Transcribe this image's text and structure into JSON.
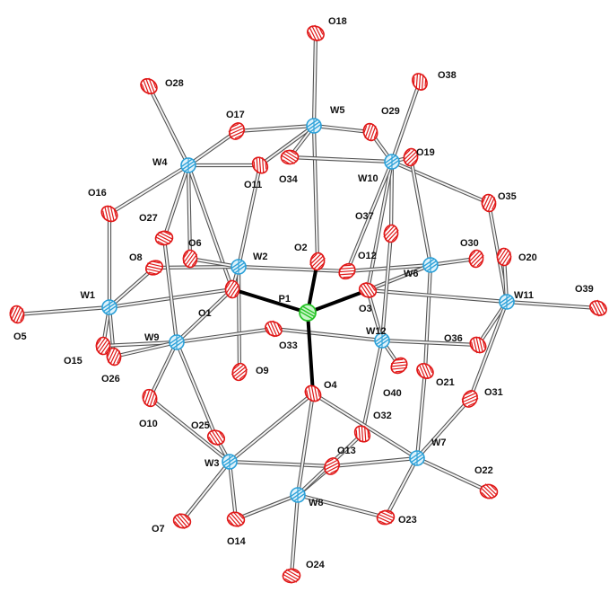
{
  "colors": {
    "bond": "#555555",
    "bond_fill": "#f4f4f4",
    "p_bond": "#000000",
    "oxygen": "#e01818",
    "oxygen_fill": "#ffffff",
    "tungsten": "#2aa0d8",
    "tungsten_fill": "#dff2fb",
    "phosphorus": "#27c527",
    "label": "#111111"
  },
  "atoms": [
    {
      "id": "P1",
      "label": "P1",
      "el": "P"
    },
    {
      "id": "W1",
      "label": "W1",
      "el": "W"
    },
    {
      "id": "W2",
      "label": "W2",
      "el": "W"
    },
    {
      "id": "W3",
      "label": "W3",
      "el": "W"
    },
    {
      "id": "W4",
      "label": "W4",
      "el": "W"
    },
    {
      "id": "W5",
      "label": "W5",
      "el": "W"
    },
    {
      "id": "W6",
      "label": "W6",
      "el": "W"
    },
    {
      "id": "W7",
      "label": "W7",
      "el": "W"
    },
    {
      "id": "W8",
      "label": "W8",
      "el": "W"
    },
    {
      "id": "W9",
      "label": "W9",
      "el": "W"
    },
    {
      "id": "W10",
      "label": "W10",
      "el": "W"
    },
    {
      "id": "W11",
      "label": "W11",
      "el": "W"
    },
    {
      "id": "W12",
      "label": "W12",
      "el": "W"
    },
    {
      "id": "O1",
      "label": "O1",
      "el": "O"
    },
    {
      "id": "O2",
      "label": "O2",
      "el": "O"
    },
    {
      "id": "O3",
      "label": "O3",
      "el": "O"
    },
    {
      "id": "O4",
      "label": "O4",
      "el": "O"
    },
    {
      "id": "O5",
      "label": "O5",
      "el": "O"
    },
    {
      "id": "O6",
      "label": "O6",
      "el": "O"
    },
    {
      "id": "O7",
      "label": "O7",
      "el": "O"
    },
    {
      "id": "O8",
      "label": "O8",
      "el": "O"
    },
    {
      "id": "O9",
      "label": "O9",
      "el": "O"
    },
    {
      "id": "O10",
      "label": "O10",
      "el": "O"
    },
    {
      "id": "O11",
      "label": "O11",
      "el": "O"
    },
    {
      "id": "O12",
      "label": "O12",
      "el": "O"
    },
    {
      "id": "O13",
      "label": "O13",
      "el": "O"
    },
    {
      "id": "O14",
      "label": "O14",
      "el": "O"
    },
    {
      "id": "O15",
      "label": "O15",
      "el": "O"
    },
    {
      "id": "O16",
      "label": "O16",
      "el": "O"
    },
    {
      "id": "O17",
      "label": "O17",
      "el": "O"
    },
    {
      "id": "O18",
      "label": "O18",
      "el": "O"
    },
    {
      "id": "O19",
      "label": "O19",
      "el": "O"
    },
    {
      "id": "O20",
      "label": "O20",
      "el": "O"
    },
    {
      "id": "O21",
      "label": "O21",
      "el": "O"
    },
    {
      "id": "O22",
      "label": "O22",
      "el": "O"
    },
    {
      "id": "O23",
      "label": "O23",
      "el": "O"
    },
    {
      "id": "O24",
      "label": "O24",
      "el": "O"
    },
    {
      "id": "O25",
      "label": "O25",
      "el": "O"
    },
    {
      "id": "O26",
      "label": "O26",
      "el": "O"
    },
    {
      "id": "O27",
      "label": "O27",
      "el": "O"
    },
    {
      "id": "O28",
      "label": "O28",
      "el": "O"
    },
    {
      "id": "O29",
      "label": "O29",
      "el": "O"
    },
    {
      "id": "O30",
      "label": "O30",
      "el": "O"
    },
    {
      "id": "O31",
      "label": "O31",
      "el": "O"
    },
    {
      "id": "O32",
      "label": "O32",
      "el": "O"
    },
    {
      "id": "O33",
      "label": "O33",
      "el": "O"
    },
    {
      "id": "O34",
      "label": "O34",
      "el": "O"
    },
    {
      "id": "O35",
      "label": "O35",
      "el": "O"
    },
    {
      "id": "O36",
      "label": "O36",
      "el": "O"
    },
    {
      "id": "O37",
      "label": "O37",
      "el": "O"
    },
    {
      "id": "O38",
      "label": "O38",
      "el": "O"
    },
    {
      "id": "O39",
      "label": "O39",
      "el": "O"
    },
    {
      "id": "O40",
      "label": "O40",
      "el": "O"
    }
  ],
  "bonds": [
    [
      "W5",
      "O18"
    ],
    [
      "W5",
      "O17"
    ],
    [
      "W5",
      "O29"
    ],
    [
      "W5",
      "O11"
    ],
    [
      "W5",
      "O34"
    ],
    [
      "W5",
      "O2"
    ],
    [
      "W4",
      "O28"
    ],
    [
      "W4",
      "O17"
    ],
    [
      "W4",
      "O16"
    ],
    [
      "W4",
      "O27"
    ],
    [
      "W4",
      "O11"
    ],
    [
      "W4",
      "O1"
    ],
    [
      "W4",
      "O6"
    ],
    [
      "W10",
      "O38"
    ],
    [
      "W10",
      "O19"
    ],
    [
      "W10",
      "O35"
    ],
    [
      "W10",
      "O37"
    ],
    [
      "W10",
      "O34"
    ],
    [
      "W10",
      "O29"
    ],
    [
      "W10",
      "O3"
    ],
    [
      "W10",
      "O12"
    ],
    [
      "W1",
      "O5"
    ],
    [
      "W1",
      "O16"
    ],
    [
      "W1",
      "O8"
    ],
    [
      "W1",
      "O15"
    ],
    [
      "W1",
      "O26"
    ],
    [
      "W1",
      "O1"
    ],
    [
      "W2",
      "O8"
    ],
    [
      "W2",
      "O6"
    ],
    [
      "W2",
      "O11"
    ],
    [
      "W2",
      "O12"
    ],
    [
      "W2",
      "O9"
    ],
    [
      "W2",
      "O1"
    ],
    [
      "W6",
      "O12"
    ],
    [
      "W6",
      "O30"
    ],
    [
      "W6",
      "O19"
    ],
    [
      "W6",
      "O21"
    ],
    [
      "W6",
      "O3"
    ],
    [
      "W11",
      "O39"
    ],
    [
      "W11",
      "O35"
    ],
    [
      "W11",
      "O20"
    ],
    [
      "W11",
      "O36"
    ],
    [
      "W11",
      "O31"
    ],
    [
      "W11",
      "O3"
    ],
    [
      "W9",
      "O27"
    ],
    [
      "W9",
      "O15"
    ],
    [
      "W9",
      "O26"
    ],
    [
      "W9",
      "O33"
    ],
    [
      "W9",
      "O25"
    ],
    [
      "W9",
      "O10"
    ],
    [
      "W9",
      "O1"
    ],
    [
      "W12",
      "O33"
    ],
    [
      "W12",
      "O36"
    ],
    [
      "W12",
      "O40"
    ],
    [
      "W12",
      "O32"
    ],
    [
      "W12",
      "O37"
    ],
    [
      "W12",
      "O3"
    ],
    [
      "W3",
      "O10"
    ],
    [
      "W3",
      "O25"
    ],
    [
      "W3",
      "O7"
    ],
    [
      "W3",
      "O14"
    ],
    [
      "W3",
      "O13"
    ],
    [
      "W3",
      "O4"
    ],
    [
      "W8",
      "O24"
    ],
    [
      "W8",
      "O14"
    ],
    [
      "W8",
      "O23"
    ],
    [
      "W8",
      "O13"
    ],
    [
      "W8",
      "O32"
    ],
    [
      "W8",
      "O4"
    ],
    [
      "W7",
      "O22"
    ],
    [
      "W7",
      "O23"
    ],
    [
      "W7",
      "O31"
    ],
    [
      "W7",
      "O21"
    ],
    [
      "W7",
      "O13"
    ],
    [
      "W7",
      "O4"
    ]
  ],
  "p_bonds": [
    [
      "P1",
      "O1"
    ],
    [
      "P1",
      "O2"
    ],
    [
      "P1",
      "O3"
    ],
    [
      "P1",
      "O4"
    ]
  ]
}
